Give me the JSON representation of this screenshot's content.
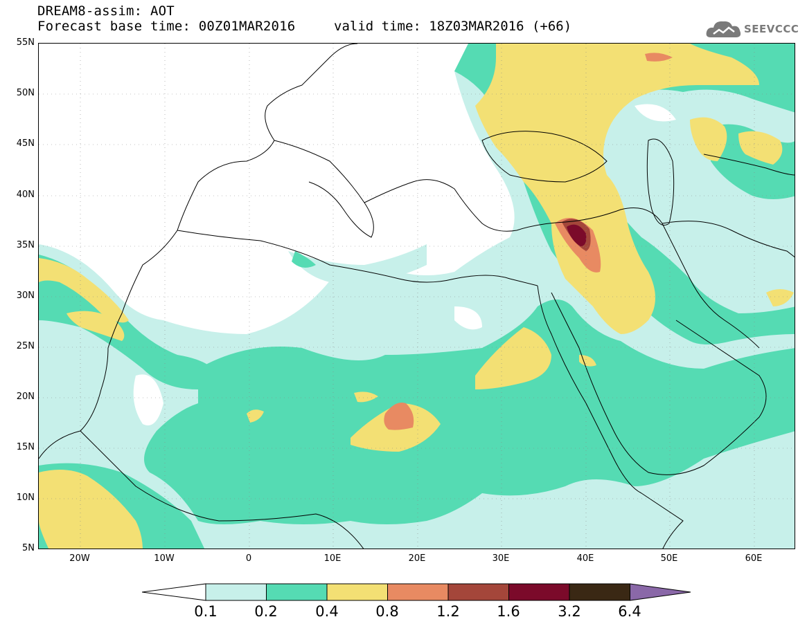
{
  "header": {
    "title_line1": "DREAM8-assim: AOT",
    "title_line2": "Forecast base time: 00Z01MAR2016",
    "valid_time": "valid time: 18Z03MAR2016 (+66)",
    "logo_text": "SEEVCCC"
  },
  "map": {
    "lat_labels": [
      "55N",
      "50N",
      "45N",
      "40N",
      "35N",
      "30N",
      "25N",
      "20N",
      "15N",
      "10N",
      "5N"
    ],
    "lon_labels": [
      "20W",
      "10W",
      "0",
      "10E",
      "20E",
      "30E",
      "40E",
      "50E",
      "60E"
    ],
    "extent": {
      "lon_min": -25,
      "lon_max": 65,
      "lat_min": 5,
      "lat_max": 55
    },
    "level_colors": {
      "0.1-0.2": "#c7f0ea",
      "0.2-0.4": "#55dbb3",
      "0.4-0.8": "#f3e074",
      "0.8-1.2": "#e88a62",
      "1.2-1.6": "#a4463a",
      "1.6-3.2": "#7b0a2a",
      "3.2-6.4": "#3a2814",
      "6.4+": "#8a68a8"
    }
  },
  "colorbar": {
    "labels": [
      "0.1",
      "0.2",
      "0.4",
      "0.8",
      "1.2",
      "1.6",
      "3.2",
      "6.4"
    ],
    "colors": [
      "#c7f0ea",
      "#55dbb3",
      "#f3e074",
      "#e88a62",
      "#a4463a",
      "#7b0a2a",
      "#3a2814"
    ],
    "under_color": "#ffffff",
    "over_color": "#8a68a8"
  }
}
